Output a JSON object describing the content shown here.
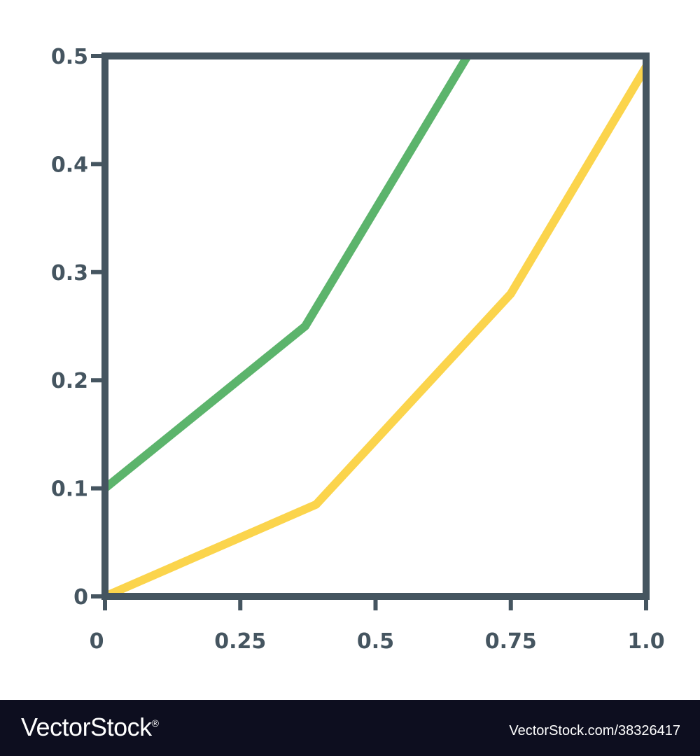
{
  "chart_data": {
    "type": "line",
    "title": "",
    "xlabel": "",
    "ylabel": "",
    "xlim": [
      0,
      1.0
    ],
    "ylim": [
      0,
      0.5
    ],
    "x_ticks": [
      "0",
      "0.25",
      "0.5",
      "0.75",
      "1.0"
    ],
    "x_tick_values": [
      0,
      0.25,
      0.5,
      0.75,
      1.0
    ],
    "y_ticks": [
      "0",
      "0.1",
      "0.2",
      "0.3",
      "0.4",
      "0.5"
    ],
    "y_tick_values": [
      0,
      0.1,
      0.2,
      0.3,
      0.4,
      0.5
    ],
    "grid": false,
    "series": [
      {
        "color": "#5cb46c",
        "points": [
          [
            0,
            0.1
          ],
          [
            0.37,
            0.25
          ],
          [
            0.67,
            0.5
          ]
        ]
      },
      {
        "color": "#fbd44c",
        "points": [
          [
            0,
            0
          ],
          [
            0.39,
            0.085
          ],
          [
            0.75,
            0.28
          ],
          [
            1.0,
            0.49
          ]
        ]
      }
    ],
    "axis_color": "#455560"
  },
  "footer": {
    "brand": "VectorStock",
    "registered_mark": "®",
    "image_id": "VectorStock.com/38326417"
  }
}
